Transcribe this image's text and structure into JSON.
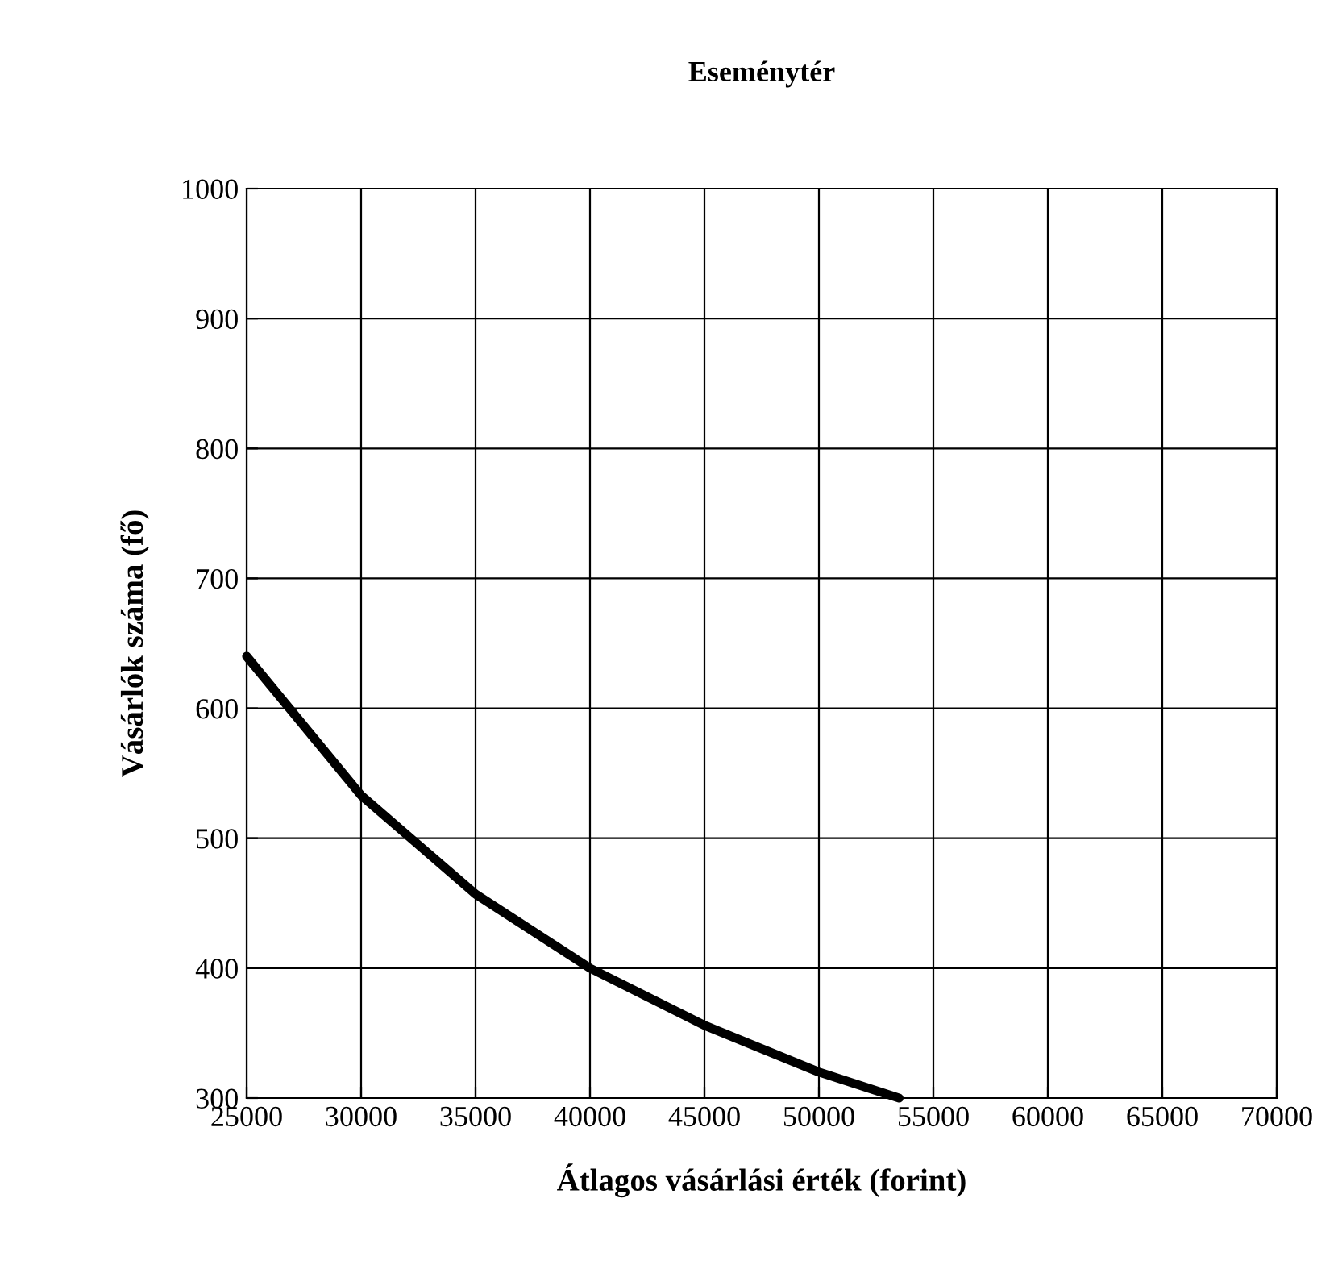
{
  "chart_data": {
    "type": "line",
    "title": "Eseménytér",
    "xlabel": "Átlagos vásárlási érték (forint)",
    "ylabel": "Vásárlók száma (fő)",
    "x": [
      25000,
      30000,
      35000,
      40000,
      45000,
      50000,
      53500
    ],
    "series": [
      {
        "color": "#000000",
        "values": [
          640,
          533,
          457,
          400,
          356,
          320,
          300
        ]
      }
    ],
    "xlim": [
      25000,
      70000
    ],
    "xticks": [
      25000,
      30000,
      35000,
      40000,
      45000,
      50000,
      55000,
      60000,
      65000,
      70000
    ],
    "ylim": [
      300,
      1000
    ],
    "yticks": [
      300,
      400,
      500,
      600,
      700,
      800,
      900,
      1000
    ],
    "grid": true,
    "legend": false,
    "marker": "none",
    "line_style": "solid"
  }
}
